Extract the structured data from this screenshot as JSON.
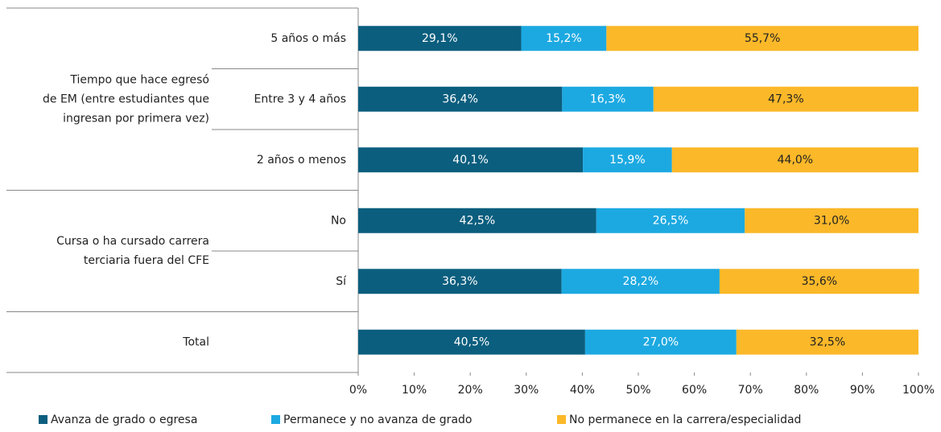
{
  "chart_data": {
    "type": "stacked_barh",
    "groups": [
      {
        "label": [
          "Tiempo que hace egresó",
          "de EM (entre estudiantes que",
          "ingresan por primera vez)"
        ],
        "categories": [
          "5 años o más",
          "Entre 3 y 4 años",
          "2 años o menos"
        ]
      },
      {
        "label": [
          "Cursa o ha cursado carrera",
          "terciaria  fuera del CFE"
        ],
        "categories": [
          "No",
          "Sí"
        ]
      },
      {
        "label": [
          "Total"
        ],
        "categories": [
          null
        ]
      }
    ],
    "series": [
      {
        "name": "Avanza de grado o egresa",
        "color": "#0b5e7e",
        "values": [
          29.1,
          36.4,
          40.1,
          42.5,
          36.3,
          40.5
        ],
        "value_labels": [
          "29,1%",
          "36,4%",
          "40,1%",
          "42,5%",
          "36,3%",
          "40,5%"
        ]
      },
      {
        "name": "Permanece y no avanza de grado",
        "color": "#1ca9e1",
        "values": [
          15.2,
          16.3,
          15.9,
          26.5,
          28.2,
          27.0
        ],
        "value_labels": [
          "15,2%",
          "16,3%",
          "15,9%",
          "26,5%",
          "28,2%",
          "27,0%"
        ]
      },
      {
        "name": "No permanece en la carrera/especialidad",
        "color": "#fbb829",
        "values": [
          55.7,
          47.3,
          44.0,
          31.0,
          35.6,
          32.5
        ],
        "value_labels": [
          "55,7%",
          "47,3%",
          "44,0%",
          "31,0%",
          "35,6%",
          "32,5%"
        ]
      }
    ],
    "xlim": [
      0,
      100
    ],
    "xticks": [
      {
        "value": 0,
        "label": "0%"
      },
      {
        "value": 10,
        "label": "10%"
      },
      {
        "value": 20,
        "label": "20%"
      },
      {
        "value": 30,
        "label": "30%"
      },
      {
        "value": 40,
        "label": "40%"
      },
      {
        "value": 50,
        "label": "50%"
      },
      {
        "value": 60,
        "label": "60%"
      },
      {
        "value": 70,
        "label": "70%"
      },
      {
        "value": 80,
        "label": "80%"
      },
      {
        "value": 90,
        "label": "90%"
      },
      {
        "value": 100,
        "label": "100%"
      }
    ],
    "legend": "bottom"
  }
}
